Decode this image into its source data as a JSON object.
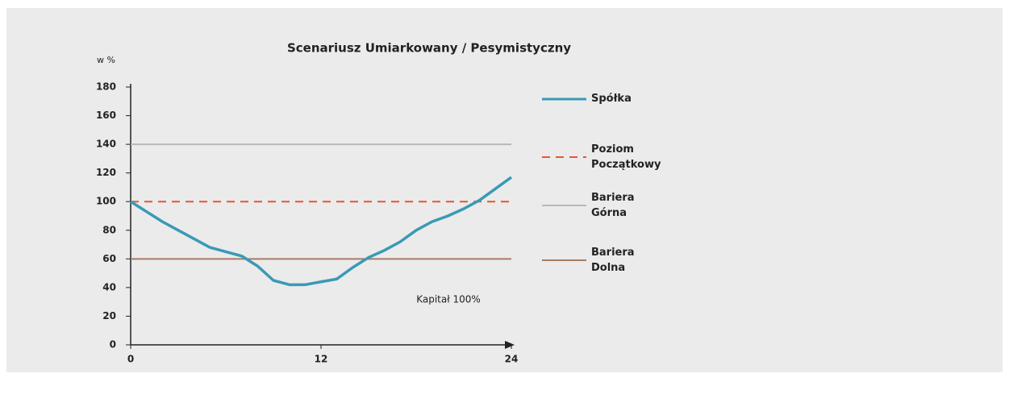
{
  "chart_data": {
    "type": "line",
    "title": "Scenariusz Umiarkowany / Pesymistyczny",
    "y_label": "w %",
    "annotation": "Kapitał 100%",
    "xlim": [
      0,
      24
    ],
    "xticks": [
      0,
      12,
      24
    ],
    "ylim": [
      0,
      180
    ],
    "yticks": [
      0,
      20,
      40,
      60,
      80,
      100,
      120,
      140,
      160,
      180
    ],
    "series": [
      {
        "name": "Spółka",
        "color": "#3a9ab5",
        "style": "solid",
        "x": [
          0,
          1,
          2,
          3,
          4,
          5,
          6,
          7,
          8,
          9,
          10,
          11,
          12,
          13,
          14,
          15,
          16,
          17,
          18,
          19,
          20,
          21,
          22,
          23,
          24
        ],
        "values": [
          100,
          93,
          86,
          80,
          74,
          68,
          65,
          62,
          55,
          45,
          42,
          42,
          44,
          46,
          54,
          61,
          66,
          72,
          80,
          86,
          90,
          95,
          101,
          109,
          117
        ]
      },
      {
        "name": "Poziom Początkowy",
        "color": "#e4572e",
        "style": "dashed",
        "x": [
          0,
          24
        ],
        "values": [
          100,
          100
        ]
      },
      {
        "name": "Bariera Górna",
        "color": "#b8b8b8",
        "style": "solid",
        "x": [
          0,
          24
        ],
        "values": [
          140,
          140
        ]
      },
      {
        "name": "Bariera Dolna",
        "color": "#a87b62",
        "style": "solid",
        "x": [
          0,
          24
        ],
        "values": [
          60,
          60
        ]
      }
    ]
  }
}
